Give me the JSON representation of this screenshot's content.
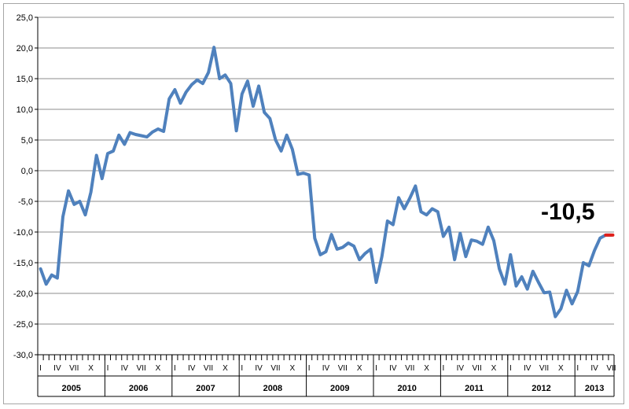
{
  "chart_data": {
    "type": "line",
    "title": "",
    "xlabel": "",
    "ylabel": "",
    "ylim": [
      -30,
      25
    ],
    "y_ticks": [
      "25,0",
      "20,0",
      "15,0",
      "10,0",
      "5,0",
      "0,0",
      "-5,0",
      "-10,0",
      "-15,0",
      "-20,0",
      "-25,0",
      "-30,0"
    ],
    "grid": "horizontal",
    "years": [
      "2005",
      "2006",
      "2007",
      "2008",
      "2009",
      "2010",
      "2011",
      "2012",
      "2013"
    ],
    "month_labels": [
      "I",
      "IV",
      "VII",
      "X"
    ],
    "month_labels_last_year": [
      "I",
      "IV",
      "VII"
    ],
    "annotation": "-10,5",
    "series": [
      {
        "color": "#4f81bd",
        "last_point_color": "#e0211b",
        "values": [
          -16.0,
          -18.5,
          -17.0,
          -17.5,
          -7.5,
          -3.3,
          -5.5,
          -5.0,
          -7.2,
          -3.5,
          2.5,
          -1.3,
          2.8,
          3.2,
          5.8,
          4.3,
          6.2,
          5.9,
          5.7,
          5.5,
          6.3,
          6.8,
          6.4,
          11.7,
          13.2,
          11.0,
          12.8,
          14.0,
          14.8,
          14.2,
          16.0,
          20.1,
          15.0,
          15.6,
          14.2,
          6.5,
          12.5,
          14.6,
          10.5,
          13.8,
          9.5,
          8.5,
          5.0,
          3.2,
          5.8,
          3.5,
          -0.6,
          -0.4,
          -0.7,
          -11.0,
          -13.7,
          -13.2,
          -10.4,
          -12.8,
          -12.5,
          -11.8,
          -12.3,
          -14.5,
          -13.5,
          -12.8,
          -18.2,
          -14.0,
          -8.2,
          -8.8,
          -4.4,
          -6.2,
          -4.5,
          -2.5,
          -6.7,
          -7.2,
          -6.2,
          -6.7,
          -10.7,
          -9.2,
          -14.5,
          -10.2,
          -14.0,
          -11.3,
          -11.5,
          -12.0,
          -9.2,
          -11.4,
          -16.0,
          -18.5,
          -13.7,
          -18.8,
          -17.3,
          -19.3,
          -16.4,
          -18.2,
          -19.9,
          -19.8,
          -23.8,
          -22.5,
          -19.5,
          -21.7,
          -19.7,
          -15.0,
          -15.5,
          -13.0,
          -11.0,
          -10.5,
          -10.5
        ]
      }
    ]
  }
}
